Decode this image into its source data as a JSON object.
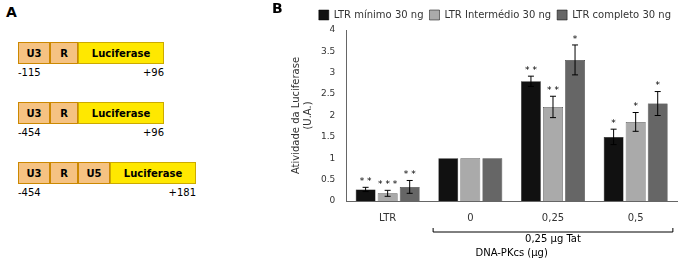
{
  "chart_data": {
    "type": "bar",
    "panel_label": "B",
    "categories": [
      "LTR",
      "0",
      "0,25",
      "0,5"
    ],
    "series": [
      {
        "name": "LTR mínimo 30 ng",
        "color": "#111111",
        "values": [
          0.27,
          1.0,
          2.8,
          1.5
        ],
        "errors": [
          0.05,
          0.0,
          0.12,
          0.18
        ],
        "annotations": [
          "* *",
          null,
          "* *",
          "*"
        ]
      },
      {
        "name": "LTR Intermédio 30 ng",
        "color": "#aaaaaa",
        "values": [
          0.18,
          1.0,
          2.2,
          1.85
        ],
        "errors": [
          0.07,
          0.0,
          0.25,
          0.22
        ],
        "annotations": [
          "* * *",
          null,
          "* *",
          "*"
        ]
      },
      {
        "name": "LTR completo 30 ng",
        "color": "#666666",
        "values": [
          0.33,
          1.0,
          3.3,
          2.28
        ],
        "errors": [
          0.15,
          0.0,
          0.35,
          0.28
        ],
        "annotations": [
          "* *",
          null,
          "*",
          "*"
        ]
      }
    ],
    "ylabel": "Atividade da Luciferase\n(U.A.)",
    "xlabel": "DNA-PKcs (µg)",
    "annotations": [
      {
        "text": "0,25 µg Tat",
        "categories": [
          "0",
          "0,25",
          "0,5"
        ]
      }
    ],
    "ylim": [
      0.0,
      4.0
    ],
    "yticks": [
      0.0,
      0.5,
      1.0,
      1.5,
      2.0,
      2.5,
      3.0,
      3.5,
      4.0
    ],
    "grid": false,
    "legend": "upper right"
  },
  "diagram": {
    "panel_label": "A",
    "colors": {
      "orange": "#F5C282",
      "yellow": "#FFE800"
    },
    "rows": [
      {
        "parts": [
          {
            "label": "U3",
            "type": "orange"
          },
          {
            "label": "R",
            "type": "orange"
          },
          {
            "label": "Luciferase",
            "type": "yellow"
          }
        ],
        "label_left": "-115",
        "label_right": "+96"
      },
      {
        "parts": [
          {
            "label": "U3",
            "type": "orange"
          },
          {
            "label": "R",
            "type": "orange"
          },
          {
            "label": "Luciferase",
            "type": "yellow"
          }
        ],
        "label_left": "-454",
        "label_right": "+96"
      },
      {
        "parts": [
          {
            "label": "U3",
            "type": "orange"
          },
          {
            "label": "R",
            "type": "orange"
          },
          {
            "label": "U5",
            "type": "orange"
          },
          {
            "label": "Luciferase",
            "type": "yellow"
          }
        ],
        "label_left": "-454",
        "label_right": "+181"
      }
    ]
  }
}
